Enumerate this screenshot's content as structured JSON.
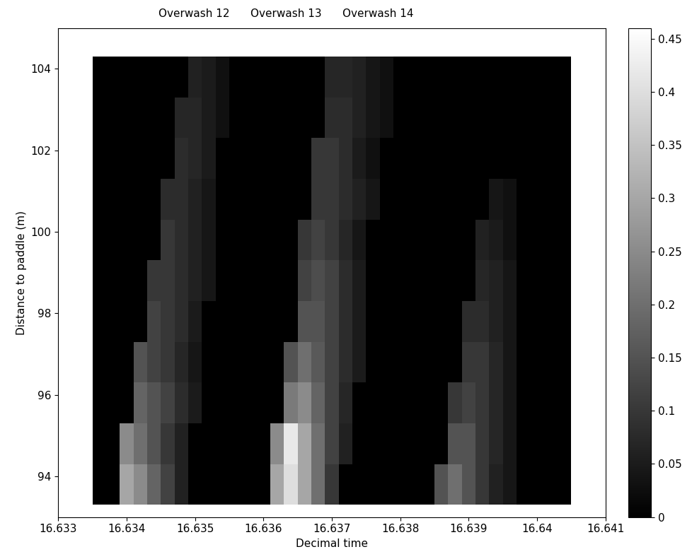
{
  "chart_data": {
    "type": "heatmap",
    "xlabel": "Decimal time",
    "ylabel": "Distance to paddle (m)",
    "annotations": [
      "Overwash 12",
      "Overwash 13",
      "Overwash 14"
    ],
    "xlim": [
      16.633,
      16.641
    ],
    "xticks": [
      16.633,
      16.634,
      16.635,
      16.636,
      16.637,
      16.638,
      16.639,
      16.64,
      16.641
    ],
    "ylim": [
      93,
      105
    ],
    "yticks": [
      94,
      96,
      98,
      100,
      102,
      104
    ],
    "x_edges": [
      16.6335,
      16.6337,
      16.6339,
      16.6341,
      16.6343,
      16.6345,
      16.6347,
      16.6349,
      16.6351,
      16.6353,
      16.6355,
      16.6357,
      16.6359,
      16.6361,
      16.6363,
      16.6365,
      16.6367,
      16.6369,
      16.6371,
      16.6373,
      16.6375,
      16.6377,
      16.6379,
      16.6381,
      16.6383,
      16.6385,
      16.6387,
      16.6389,
      16.6391,
      16.6393,
      16.6395,
      16.6397,
      16.6399,
      16.6401,
      16.6403,
      16.6405
    ],
    "y_edges": [
      93.3,
      94.3,
      95.3,
      96.3,
      97.3,
      98.3,
      99.3,
      100.3,
      101.3,
      102.3,
      103.3,
      104.3
    ],
    "cells": [
      [
        0,
        0,
        0.3,
        0.25,
        0.18,
        0.12,
        0.06,
        0,
        0,
        0,
        0,
        0,
        0,
        0.3,
        0.4,
        0.3,
        0.2,
        0.1,
        0,
        0,
        0,
        0,
        0,
        0,
        0,
        0.15,
        0.2,
        0.15,
        0.1,
        0.06,
        0.04,
        0,
        0,
        0,
        0
      ],
      [
        0,
        0,
        0.25,
        0.2,
        0.15,
        0.1,
        0.06,
        0,
        0,
        0,
        0,
        0,
        0,
        0.25,
        0.42,
        0.3,
        0.2,
        0.12,
        0.06,
        0,
        0,
        0,
        0,
        0,
        0,
        0,
        0.15,
        0.15,
        0.1,
        0.07,
        0.04,
        0,
        0,
        0,
        0
      ],
      [
        0,
        0,
        0,
        0.18,
        0.15,
        0.12,
        0.08,
        0.05,
        0,
        0,
        0,
        0,
        0,
        0,
        0.22,
        0.25,
        0.18,
        0.12,
        0.07,
        0,
        0,
        0,
        0,
        0,
        0,
        0,
        0.1,
        0.12,
        0.1,
        0.07,
        0.04,
        0,
        0,
        0,
        0
      ],
      [
        0,
        0,
        0,
        0.15,
        0.12,
        0.1,
        0.07,
        0.04,
        0,
        0,
        0,
        0,
        0,
        0,
        0.15,
        0.2,
        0.16,
        0.12,
        0.08,
        0.05,
        0,
        0,
        0,
        0,
        0,
        0,
        0,
        0.1,
        0.1,
        0.07,
        0.04,
        0,
        0,
        0,
        0
      ],
      [
        0,
        0,
        0,
        0,
        0.12,
        0.1,
        0.08,
        0.05,
        0,
        0,
        0,
        0,
        0,
        0,
        0,
        0.15,
        0.15,
        0.12,
        0.08,
        0.05,
        0,
        0,
        0,
        0,
        0,
        0,
        0,
        0.08,
        0.08,
        0.06,
        0.04,
        0,
        0,
        0,
        0
      ],
      [
        0,
        0,
        0,
        0,
        0.1,
        0.1,
        0.08,
        0.06,
        0.04,
        0,
        0,
        0,
        0,
        0,
        0,
        0.12,
        0.14,
        0.12,
        0.08,
        0.05,
        0,
        0,
        0,
        0,
        0,
        0,
        0,
        0,
        0.07,
        0.06,
        0.04,
        0,
        0,
        0,
        0
      ],
      [
        0,
        0,
        0,
        0,
        0,
        0.1,
        0.08,
        0.06,
        0.04,
        0,
        0,
        0,
        0,
        0,
        0,
        0.1,
        0.12,
        0.1,
        0.07,
        0.04,
        0,
        0,
        0,
        0,
        0,
        0,
        0,
        0,
        0.06,
        0.05,
        0.03,
        0,
        0,
        0,
        0
      ],
      [
        0,
        0,
        0,
        0,
        0,
        0.08,
        0.08,
        0.06,
        0.04,
        0,
        0,
        0,
        0,
        0,
        0,
        0,
        0.1,
        0.1,
        0.08,
        0.06,
        0.04,
        0,
        0,
        0,
        0,
        0,
        0,
        0,
        0,
        0.04,
        0.03,
        0,
        0,
        0,
        0
      ],
      [
        0,
        0,
        0,
        0,
        0,
        0,
        0.08,
        0.07,
        0.05,
        0,
        0,
        0,
        0,
        0,
        0,
        0,
        0.1,
        0.1,
        0.08,
        0.05,
        0.03,
        0,
        0,
        0,
        0,
        0,
        0,
        0,
        0,
        0,
        0,
        0,
        0,
        0,
        0
      ],
      [
        0,
        0,
        0,
        0,
        0,
        0,
        0.07,
        0.07,
        0.05,
        0.03,
        0,
        0,
        0,
        0,
        0,
        0,
        0,
        0.08,
        0.08,
        0.06,
        0.04,
        0.03,
        0,
        0,
        0,
        0,
        0,
        0,
        0,
        0,
        0,
        0,
        0,
        0,
        0
      ],
      [
        0,
        0,
        0,
        0,
        0,
        0,
        0,
        0.06,
        0.05,
        0.03,
        0,
        0,
        0,
        0,
        0,
        0,
        0,
        0.07,
        0.07,
        0.06,
        0.04,
        0.03,
        0,
        0,
        0,
        0,
        0,
        0,
        0,
        0,
        0,
        0,
        0,
        0,
        0
      ]
    ],
    "colorbar": {
      "range": [
        0,
        0.46
      ],
      "ticks": [
        0,
        0.05,
        0.1,
        0.15,
        0.2,
        0.25,
        0.3,
        0.35,
        0.4,
        0.45
      ]
    }
  }
}
